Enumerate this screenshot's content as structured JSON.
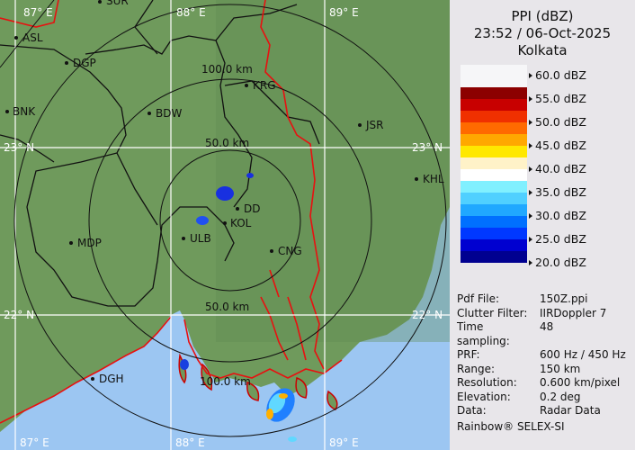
{
  "header": {
    "product": "PPI (dBZ)",
    "datetime": "23:52 / 06-Oct-2025",
    "station": "Kolkata"
  },
  "colors": {
    "land": "#6f9a5c",
    "sea": "#9cc6f2",
    "border_state": "#111111",
    "border_intl": "#e81010",
    "grid": "#ffffff"
  },
  "legend": {
    "labels": [
      "60.0 dBZ",
      "55.0 dBZ",
      "50.0 dBZ",
      "45.0 dBZ",
      "40.0 dBZ",
      "35.0 dBZ",
      "30.0 dBZ",
      "25.0 dBZ",
      "20.0 dBZ"
    ],
    "colors": [
      "#8c0000",
      "#c80000",
      "#f03000",
      "#ff6a00",
      "#ffa800",
      "#ffe800",
      "#fff2c8",
      "#ffffff",
      "#80f0ff",
      "#50d0ff",
      "#20a8ff",
      "#0070ff",
      "#0038ff",
      "#0000d0",
      "#000090"
    ]
  },
  "info": [
    {
      "key": "Pdf File:",
      "value": "150Z.ppi"
    },
    {
      "key": "Clutter Filter:",
      "value": "IIRDoppler 7"
    },
    {
      "key": "Time sampling:",
      "value": "48"
    },
    {
      "key": "PRF:",
      "value": "600 Hz / 450 Hz"
    },
    {
      "key": "Range:",
      "value": "150 km"
    },
    {
      "key": "Resolution:",
      "value": "0.600 km/pixel"
    },
    {
      "key": "Elevation:",
      "value": "0.2 deg"
    },
    {
      "key": "Data:",
      "value": "Radar Data"
    }
  ],
  "credit": "Rainbow® SELEX-SI",
  "map": {
    "grid_labels": {
      "lon87_top": "87° E",
      "lon88_top": "88° E",
      "lon89_top": "89° E",
      "lat23": "23° N",
      "lat22_left": "22° N",
      "lat22_right": "22° N",
      "lat23_right": "23° N",
      "lon87_bottom": "87° E",
      "lon88_bottom": "88° E",
      "lon89_bottom": "89° E"
    },
    "range_labels": {
      "r100": "100.0 km",
      "r50_top": "50.0 km",
      "r50_bottom": "50.0 km",
      "r100_bottom": "100.0 km"
    },
    "cities": [
      {
        "name": "SUR"
      },
      {
        "name": "ASL"
      },
      {
        "name": "DGP"
      },
      {
        "name": "BNK"
      },
      {
        "name": "BDW"
      },
      {
        "name": "KRG"
      },
      {
        "name": "JSR"
      },
      {
        "name": "KHL"
      },
      {
        "name": "DD"
      },
      {
        "name": "KOL"
      },
      {
        "name": "ULB"
      },
      {
        "name": "MDP"
      },
      {
        "name": "CNG"
      },
      {
        "name": "DGH"
      }
    ]
  }
}
